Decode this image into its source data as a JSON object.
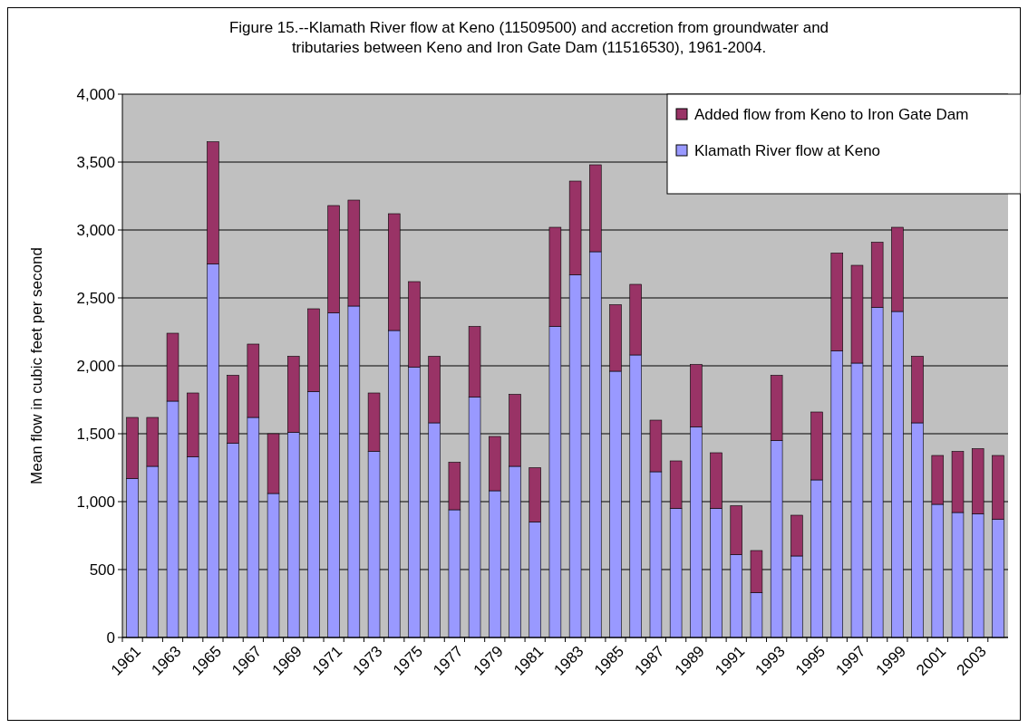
{
  "chart_data": {
    "type": "bar",
    "stacked": true,
    "title": "Figure 15.--Klamath River flow at Keno (11509500) and accretion from groundwater and tributaries between Keno and Iron Gate Dam (11516530), 1961-2004.",
    "ylabel": "Mean flow in cubic feet per second",
    "categories": [
      "1961",
      null,
      "1963",
      null,
      "1965",
      null,
      "1967",
      null,
      "1969",
      null,
      "1971",
      null,
      "1973",
      null,
      "1975",
      null,
      "1977",
      null,
      "1979",
      null,
      "1981",
      null,
      "1983",
      null,
      "1985",
      null,
      "1987",
      null,
      "1989",
      null,
      "1991",
      null,
      "1993",
      null,
      "1995",
      null,
      "1997",
      null,
      "1999",
      null,
      "2001",
      null,
      "2003",
      null
    ],
    "series": [
      {
        "name": "Klamath River flow at Keno",
        "color": "#9999ff",
        "values": [
          1170,
          1260,
          1740,
          1330,
          2750,
          1430,
          1620,
          1060,
          1510,
          1810,
          2390,
          2440,
          1370,
          2260,
          1990,
          1580,
          940,
          1770,
          1080,
          1260,
          850,
          2290,
          2670,
          2840,
          1960,
          2080,
          1220,
          950,
          1550,
          950,
          610,
          330,
          1450,
          600,
          1160,
          2110,
          2020,
          2430,
          2400,
          1580,
          980,
          920,
          910,
          870
        ]
      },
      {
        "name": "Added flow from Keno to Iron Gate Dam",
        "color": "#993366",
        "values": [
          450,
          360,
          500,
          470,
          900,
          500,
          540,
          440,
          560,
          610,
          790,
          780,
          430,
          860,
          630,
          490,
          350,
          520,
          400,
          530,
          400,
          730,
          690,
          640,
          490,
          520,
          380,
          350,
          460,
          410,
          360,
          310,
          480,
          300,
          500,
          720,
          720,
          480,
          620,
          490,
          360,
          450,
          480,
          470
        ]
      }
    ],
    "ylim": [
      0,
      4000
    ],
    "yticks": [
      0,
      500,
      {
        "value": 1000,
        "label": "1,000"
      },
      {
        "value": 1500,
        "label": "1,500"
      },
      {
        "value": 2000,
        "label": "2,000"
      },
      {
        "value": 2500,
        "label": "2,500"
      },
      {
        "value": 3000,
        "label": "3,000"
      },
      {
        "value": 3500,
        "label": "3,500"
      },
      {
        "value": 4000,
        "label": "4,000"
      }
    ],
    "grid": "y",
    "legend": "top right"
  }
}
